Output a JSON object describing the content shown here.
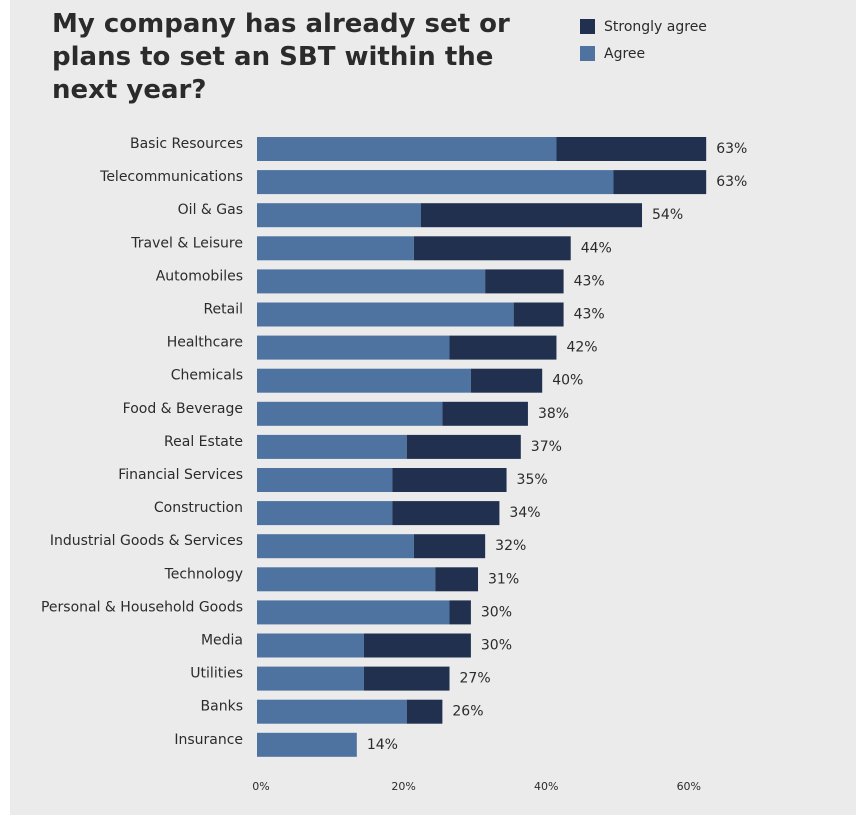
{
  "chart_data": {
    "type": "stacked-barh",
    "title": "My company has already set or plans to set an SBT within the next year?",
    "categories": [
      "Basic Resources",
      "Telecommunications",
      "Oil & Gas",
      "Travel & Leisure",
      "Automobiles",
      "Retail",
      "Healthcare",
      "Chemicals",
      "Food & Beverage",
      "Real Estate",
      "Financial Services",
      "Construction",
      "Industrial Goods & Services",
      "Technology",
      "Personal & Household Goods",
      "Media",
      "Utilities",
      "Banks",
      "Insurance"
    ],
    "series": [
      {
        "name": "Agree",
        "color": "#4e73a0",
        "values": [
          42,
          50,
          23,
          22,
          32,
          36,
          27,
          30,
          26,
          21,
          19,
          19,
          22,
          25,
          27,
          15,
          15,
          21,
          14
        ]
      },
      {
        "name": "Strongly agree",
        "color": "#22304f",
        "values": [
          21,
          13,
          31,
          22,
          11,
          7,
          15,
          10,
          12,
          16,
          16,
          15,
          10,
          6,
          3,
          15,
          12,
          5,
          0
        ]
      }
    ],
    "totals": [
      63,
      63,
      54,
      44,
      43,
      43,
      42,
      40,
      38,
      37,
      35,
      34,
      32,
      31,
      30,
      30,
      27,
      26,
      14
    ],
    "total_labels": [
      "63%",
      "63%",
      "54%",
      "44%",
      "43%",
      "43%",
      "42%",
      "40%",
      "38%",
      "37%",
      "35%",
      "34%",
      "32%",
      "31%",
      "30%",
      "30%",
      "27%",
      "26%",
      "14%"
    ],
    "xlim": [
      0,
      65
    ],
    "xticks": [
      {
        "value": 0,
        "label": "0%"
      },
      {
        "value": 20,
        "label": "20%"
      },
      {
        "value": 40,
        "label": "40%"
      },
      {
        "value": 60,
        "label": "60%"
      }
    ],
    "grid": false
  }
}
